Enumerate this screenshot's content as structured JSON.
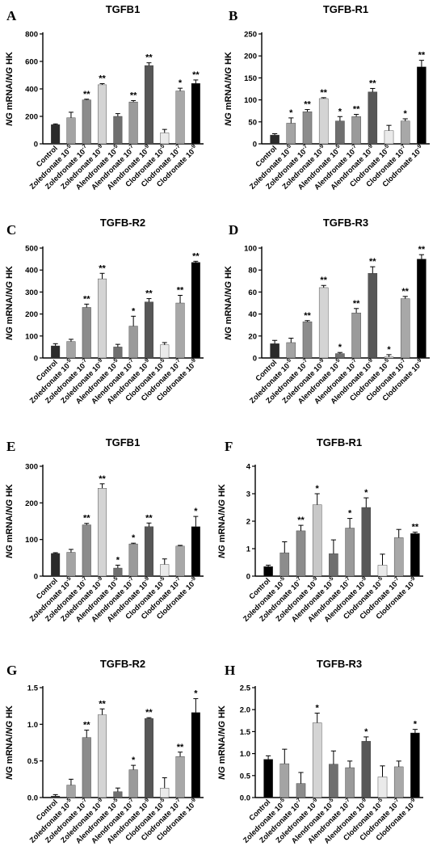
{
  "y_axis_label_italic": "NG",
  "y_axis_label_mid": " mRNA/",
  "y_axis_label_italic2": "NG",
  "y_axis_label_tail": " HK",
  "chart_data": [
    {
      "panel": "A",
      "title": "TGFB1",
      "type": "bar",
      "ylim": [
        0,
        800
      ],
      "yticks": [
        0,
        200,
        400,
        600,
        800
      ],
      "categories": [
        "Control",
        "Zoledronate 10-5",
        "Zoledronate 10-7",
        "Zoledronate 10-9",
        "Alendronate 10-5",
        "Alendronate 10-7",
        "Alendronate 10-9",
        "Clodronate 10-5",
        "Clodronate 10-7",
        "Clodronate 10-9"
      ],
      "values": [
        140,
        190,
        320,
        430,
        200,
        305,
        570,
        80,
        385,
        440
      ],
      "errors": [
        5,
        40,
        5,
        8,
        20,
        10,
        20,
        25,
        20,
        25
      ],
      "significance": [
        "",
        "",
        "**",
        "**",
        "",
        "**",
        "**",
        "",
        "*",
        "**"
      ],
      "colors": [
        "#2b2b2b",
        "#a4a4a4",
        "#8c8c8c",
        "#d4d4d4",
        "#6f6f6f",
        "#9a9a9a",
        "#575757",
        "#eaeaea",
        "#a8a8a8",
        "#000000"
      ]
    },
    {
      "panel": "B",
      "title": "TGFB-R1",
      "type": "bar",
      "ylim": [
        0,
        250
      ],
      "yticks": [
        0,
        50,
        100,
        150,
        200,
        250
      ],
      "categories": [
        "Control",
        "Zoledronate 10-5",
        "Zoledronate 10-7",
        "Zoledronate 10-9",
        "Alendronate 10-5",
        "Alendronate 10-7",
        "Alendronate 10-9",
        "Clodronate 10-5",
        "Clodronate 10-7",
        "Clodronate 10-9"
      ],
      "values": [
        20,
        47,
        73,
        103,
        52,
        62,
        118,
        30,
        52,
        175
      ],
      "errors": [
        3,
        12,
        5,
        2,
        10,
        5,
        8,
        12,
        5,
        15
      ],
      "significance": [
        "",
        "*",
        "**",
        "**",
        "*",
        "**",
        "**",
        "",
        "*",
        "**"
      ],
      "colors": [
        "#2b2b2b",
        "#a4a4a4",
        "#8c8c8c",
        "#d4d4d4",
        "#6f6f6f",
        "#9a9a9a",
        "#575757",
        "#eaeaea",
        "#a8a8a8",
        "#000000"
      ]
    },
    {
      "panel": "C",
      "title": "TGFB-R2",
      "type": "bar",
      "ylim": [
        0,
        500
      ],
      "yticks": [
        0,
        100,
        200,
        300,
        400,
        500
      ],
      "categories": [
        "Control",
        "Zoledronate 10-5",
        "Zoledronate 10-7",
        "Zoledronate 10-9",
        "Alendronate 10-5",
        "Alendronate 10-7",
        "Alendronate 10-9",
        "Clodronate 10-5",
        "Clodronate 10-7",
        "Clodronate 10-9"
      ],
      "values": [
        55,
        75,
        230,
        360,
        50,
        145,
        255,
        60,
        250,
        435
      ],
      "errors": [
        10,
        10,
        15,
        25,
        12,
        45,
        15,
        10,
        35,
        5
      ],
      "significance": [
        "",
        "",
        "**",
        "**",
        "",
        "*",
        "**",
        "",
        "**",
        "**"
      ],
      "colors": [
        "#2b2b2b",
        "#a4a4a4",
        "#8c8c8c",
        "#d4d4d4",
        "#6f6f6f",
        "#9a9a9a",
        "#575757",
        "#eaeaea",
        "#a8a8a8",
        "#000000"
      ]
    },
    {
      "panel": "D",
      "title": "TGFB-R3",
      "type": "bar",
      "ylim": [
        0,
        100
      ],
      "yticks": [
        0,
        20,
        40,
        60,
        80,
        100
      ],
      "categories": [
        "Control",
        "Zoledronate 10-5",
        "Zoledronate 10-7",
        "Zoledronate 10-9",
        "Alendronate 10-5",
        "Alendronate 10-7",
        "Alendronate 10-9",
        "Clodronate 10-5",
        "Clodronate 10-7",
        "Clodronate 10-9"
      ],
      "values": [
        13,
        14,
        33,
        64,
        4,
        41,
        77,
        1,
        54,
        90
      ],
      "errors": [
        3,
        4,
        1,
        2,
        1,
        4,
        6,
        2,
        2,
        4
      ],
      "significance": [
        "",
        "",
        "**",
        "**",
        "*",
        "**",
        "**",
        "*",
        "**",
        "**"
      ],
      "colors": [
        "#2b2b2b",
        "#a4a4a4",
        "#8c8c8c",
        "#d4d4d4",
        "#6f6f6f",
        "#9a9a9a",
        "#575757",
        "#eaeaea",
        "#a8a8a8",
        "#000000"
      ]
    },
    {
      "panel": "E",
      "title": "TGFB1",
      "type": "bar",
      "ylim": [
        0,
        300
      ],
      "yticks": [
        0,
        100,
        200,
        300
      ],
      "categories": [
        "Control",
        "Zoledronate 10-5",
        "Zoledronate 10-7",
        "Zoledronate 10-9",
        "Alendronate 10-5",
        "Alendronate 10-7",
        "Alendronate 10-9",
        "Clodronate 10-5",
        "Clodronate 10-7",
        "Clodronate 10-9"
      ],
      "values": [
        62,
        65,
        140,
        240,
        22,
        88,
        135,
        32,
        82,
        135
      ],
      "errors": [
        2,
        8,
        4,
        12,
        8,
        2,
        10,
        15,
        2,
        28
      ],
      "significance": [
        "",
        "",
        "**",
        "**",
        "*",
        "*",
        "**",
        "",
        "",
        "*"
      ],
      "colors": [
        "#2b2b2b",
        "#a4a4a4",
        "#8c8c8c",
        "#d4d4d4",
        "#6f6f6f",
        "#9a9a9a",
        "#575757",
        "#eaeaea",
        "#a8a8a8",
        "#000000"
      ]
    },
    {
      "panel": "F",
      "title": "TGFB-R1",
      "type": "bar",
      "ylim": [
        0,
        4
      ],
      "yticks": [
        0,
        1,
        2,
        3,
        4
      ],
      "categories": [
        "Control",
        "Zoledronate 10-5",
        "Zoledronate 10-7",
        "Zoledronate 10-9",
        "Alendronate 10-5",
        "Alendronate 10-7",
        "Alendronate 10-9",
        "Clodronate 10-5",
        "Clodronate 10-7",
        "Clodronate 10-9"
      ],
      "values": [
        0.35,
        0.85,
        1.65,
        2.6,
        0.82,
        1.75,
        2.5,
        0.4,
        1.4,
        1.55
      ],
      "errors": [
        0.05,
        0.4,
        0.2,
        0.4,
        0.5,
        0.35,
        0.35,
        0.4,
        0.3,
        0.05
      ],
      "significance": [
        "",
        "",
        "**",
        "*",
        "",
        "*",
        "*",
        "",
        "",
        "**"
      ],
      "colors": [
        "#000000",
        "#8c8c8c",
        "#8c8c8c",
        "#c8c8c8",
        "#6f6f6f",
        "#9a9a9a",
        "#575757",
        "#eaeaea",
        "#a8a8a8",
        "#000000"
      ]
    },
    {
      "panel": "G",
      "title": "TGFB-R2",
      "type": "bar",
      "ylim": [
        0,
        1.5
      ],
      "yticks": [
        0.0,
        0.5,
        1.0,
        1.5
      ],
      "categories": [
        "Control",
        "Zoledronate 10-5",
        "Zoledronate 10-7",
        "Zoledronate 10-9",
        "Alendronate 10-5",
        "Alendronate 10-7",
        "Alendronate 10-9",
        "Clodronate 10-5",
        "Clodronate 10-7",
        "Clodronate 10-9"
      ],
      "values": [
        0.02,
        0.17,
        0.82,
        1.13,
        0.08,
        0.38,
        1.08,
        0.13,
        0.56,
        1.16
      ],
      "errors": [
        0.02,
        0.08,
        0.1,
        0.08,
        0.05,
        0.06,
        0.01,
        0.14,
        0.06,
        0.19
      ],
      "significance": [
        "",
        "",
        "**",
        "**",
        "",
        "*",
        "**",
        "",
        "**",
        "*"
      ],
      "colors": [
        "#2b2b2b",
        "#a4a4a4",
        "#8c8c8c",
        "#d4d4d4",
        "#6f6f6f",
        "#9a9a9a",
        "#575757",
        "#eaeaea",
        "#a8a8a8",
        "#000000"
      ]
    },
    {
      "panel": "H",
      "title": "TGFB-R3",
      "type": "bar",
      "ylim": [
        0,
        2.5
      ],
      "yticks": [
        0.0,
        0.5,
        1.0,
        1.5,
        2.0,
        2.5
      ],
      "categories": [
        "Control",
        "Zoledronate 10-5",
        "Zoledronate 10-7",
        "Zoledronate 10-9",
        "Alendronate 10-5",
        "Alendronate 10-7",
        "Alendronate 10-9",
        "Clodronate 10-5",
        "Clodronate 10-7",
        "Clodronate 10-9"
      ],
      "values": [
        0.87,
        0.77,
        0.32,
        1.7,
        0.76,
        0.68,
        1.28,
        0.47,
        0.7,
        1.47
      ],
      "errors": [
        0.08,
        0.33,
        0.25,
        0.22,
        0.3,
        0.15,
        0.1,
        0.25,
        0.13,
        0.08
      ],
      "significance": [
        "",
        "",
        "",
        "*",
        "",
        "",
        "*",
        "",
        "",
        "*"
      ],
      "colors": [
        "#000000",
        "#a4a4a4",
        "#8c8c8c",
        "#d4d4d4",
        "#6f6f6f",
        "#9a9a9a",
        "#575757",
        "#eaeaea",
        "#a8a8a8",
        "#000000"
      ]
    }
  ]
}
